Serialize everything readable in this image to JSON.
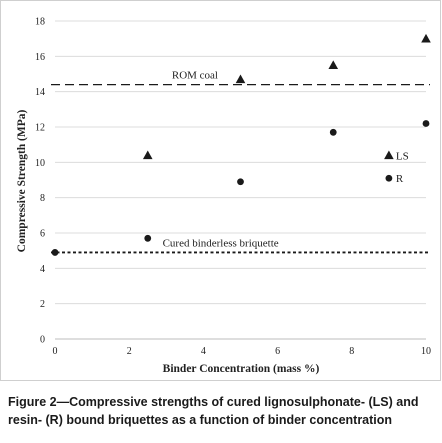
{
  "chart_data": {
    "type": "scatter",
    "title": "",
    "xlabel": "Binder Concentration (mass %)",
    "ylabel": "Compressive Strength (MPa)",
    "xlim": [
      0,
      10
    ],
    "ylim": [
      0,
      18
    ],
    "xticks": [
      0,
      2,
      4,
      6,
      8,
      10
    ],
    "yticks": [
      0,
      2,
      4,
      6,
      8,
      10,
      12,
      14,
      16,
      18
    ],
    "grid": "horizontal",
    "series": [
      {
        "name": "LS",
        "marker": "triangle",
        "color": "#1a1a1a",
        "points": [
          {
            "x": 2.5,
            "y": 10.4
          },
          {
            "x": 5,
            "y": 14.7
          },
          {
            "x": 7.5,
            "y": 15.5
          },
          {
            "x": 10,
            "y": 17.0
          }
        ]
      },
      {
        "name": "R",
        "marker": "circle",
        "color": "#1a1a1a",
        "points": [
          {
            "x": 0,
            "y": 4.9
          },
          {
            "x": 2.5,
            "y": 5.7
          },
          {
            "x": 5,
            "y": 8.9
          },
          {
            "x": 7.5,
            "y": 11.7
          },
          {
            "x": 10,
            "y": 12.2
          }
        ]
      }
    ],
    "reference_lines": [
      {
        "label": "ROM coal",
        "y": 14.4,
        "style": "dashed"
      },
      {
        "label": "Cured binderless briquette",
        "y": 4.9,
        "style": "dotted"
      }
    ],
    "legend": {
      "placement": "inside-right",
      "items": [
        {
          "label": "LS",
          "marker": "triangle",
          "x": 9.0,
          "y": 10.4
        },
        {
          "label": "R",
          "marker": "circle",
          "x": 9.0,
          "y": 9.1
        }
      ]
    }
  },
  "caption": "Figure 2—Compressive strengths of cured lignosulphonate- (LS) and resin- (R) bound briquettes as a function of binder concentration"
}
